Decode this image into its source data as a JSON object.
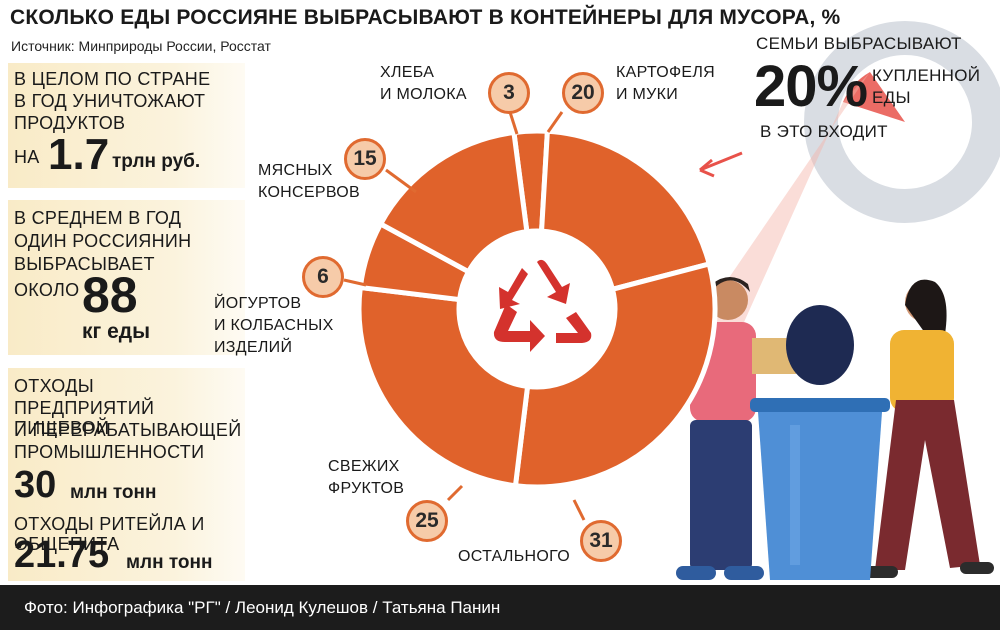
{
  "header": {
    "title": "СКОЛЬКО ЕДЫ РОССИЯНЕ ВЫБРАСЫВАЮТ В КОНТЕЙНЕРЫ ДЛЯ МУСОРА, %",
    "source": "Источник: Минприроды России, Росстат"
  },
  "panels": {
    "p1": {
      "l1": "В ЦЕЛОМ ПО СТРАНЕ",
      "l2": "В ГОД УНИЧТОЖАЮТ",
      "l3": "ПРОДУКТОВ",
      "l4_pre": "НА",
      "value": "1.7",
      "unit": "трлн руб."
    },
    "p2": {
      "l1": "В СРЕДНЕМ В ГОД",
      "l2": "ОДИН РОССИЯНИН",
      "l3": "ВЫБРАСЫВАЕТ",
      "l4_pre": "ОКОЛО",
      "value": "88",
      "unit": "кг еды"
    },
    "p3": {
      "l1": "ОТХОДЫ",
      "l2": "ПРЕДПРИЯТИЙ ПИЩЕВОЙ",
      "l3": "И ПЕРЕРАБАТЫВАЮЩЕЙ",
      "l4": "ПРОМЫШЛЕННОСТИ",
      "value": "30",
      "unit": "млн тонн",
      "l5": "ОТХОДЫ РИТЕЙЛА И ОБЩЕПИТА",
      "value2": "21.75",
      "unit2": "млн тонн"
    }
  },
  "family": {
    "l1": "СЕМЬИ ВЫБРАСЫВАЮТ",
    "value": "20%",
    "r1": "КУПЛЕННОЙ",
    "r2": "ЕДЫ",
    "l3": "В ЭТО ВХОДИТ"
  },
  "chart_data": {
    "type": "pie",
    "donut": true,
    "labels": [
      "ХЛЕБА И МОЛОКА",
      "КАРТОФЕЛЯ И МУКИ",
      "ОСТАЛЬНОГО",
      "СВЕЖИХ ФРУКТОВ",
      "ЙОГУРТОВ И КОЛБАСНЫХ ИЗДЕЛИЙ",
      "МЯСНЫХ КОНСЕРВОВ"
    ],
    "values": [
      3,
      20,
      31,
      25,
      6,
      15
    ],
    "label_lines": [
      [
        "ХЛЕБА",
        "И МОЛОКА"
      ],
      [
        "КАРТОФЕЛЯ",
        "И МУКИ"
      ],
      [
        "ОСТАЛЬНОГО"
      ],
      [
        "СВЕЖИХ",
        "ФРУКТОВ"
      ],
      [
        "ЙОГУРТОВ",
        "И КОЛБАСНЫХ",
        "ИЗДЕЛИЙ"
      ],
      [
        "МЯСНЫХ",
        "КОНСЕРВОВ"
      ]
    ],
    "color": "#e0622b",
    "bubble_fill": "#f6cba9"
  },
  "footer": {
    "credit": "Фото: Инфографика \"РГ\" / Леонид Кулешов / Татьяна Панин"
  }
}
